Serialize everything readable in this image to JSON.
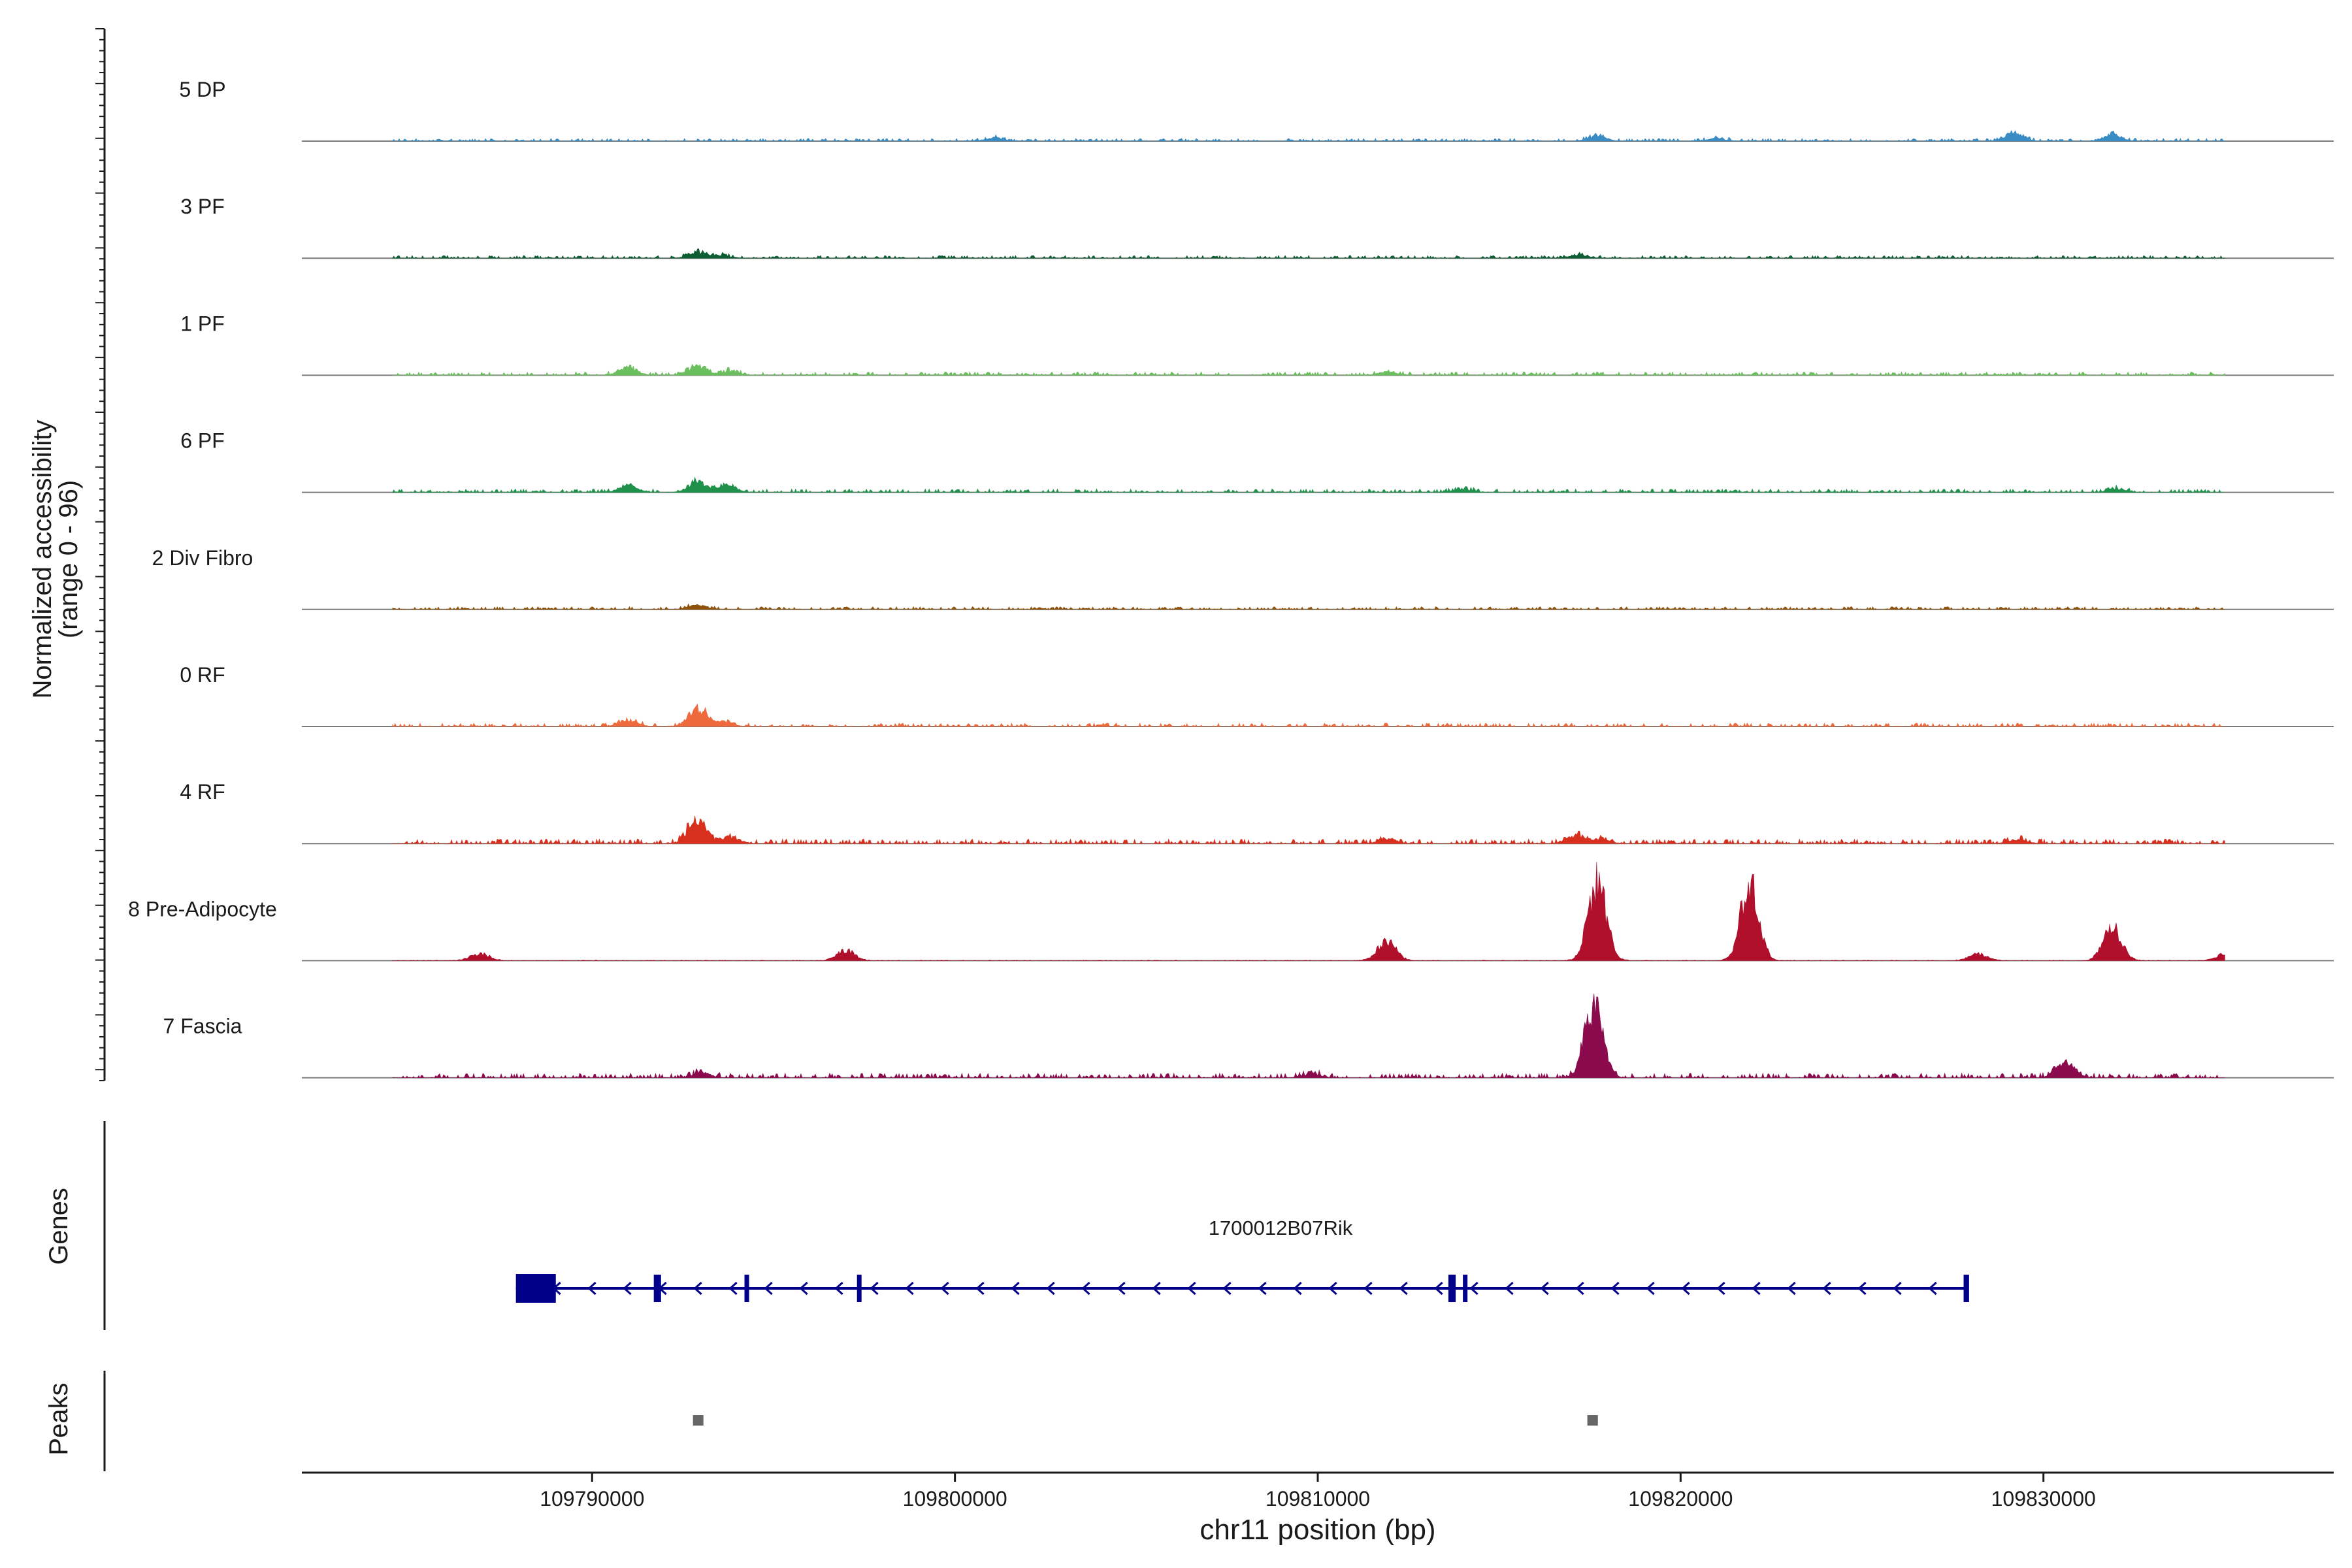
{
  "chart_data": {
    "type": "area",
    "title": "",
    "ylabel_line1": "Normalized accessibility",
    "ylabel_line2": "(range 0 - 96)",
    "xlabel": "chr11 position (bp)",
    "xlim": [
      109782000,
      109838000
    ],
    "xticks": [
      109790000,
      109800000,
      109810000,
      109820000,
      109830000
    ],
    "xtick_labels": [
      "109790000",
      "109800000",
      "109810000",
      "109820000",
      "109830000"
    ],
    "track_xlim": [
      109784500,
      109835000
    ],
    "ylim": [
      0,
      96
    ],
    "series": [
      {
        "name": "5 DP",
        "color": "#3a8dc4",
        "baseline": 1.2,
        "peaks": [
          [
            109801100,
            4
          ],
          [
            109817700,
            6
          ],
          [
            109821000,
            3
          ],
          [
            109829200,
            11
          ],
          [
            109831900,
            8
          ]
        ]
      },
      {
        "name": "3 PF",
        "color": "#0e5e34",
        "baseline": 1.2,
        "peaks": [
          [
            109792900,
            7
          ],
          [
            109793600,
            3
          ],
          [
            109817200,
            4
          ]
        ]
      },
      {
        "name": "1 PF",
        "color": "#6cbf5e",
        "baseline": 1.5,
        "peaks": [
          [
            109791000,
            9
          ],
          [
            109792900,
            11
          ],
          [
            109793800,
            5
          ],
          [
            109811900,
            4
          ]
        ]
      },
      {
        "name": "6 PF",
        "color": "#1f914b",
        "baseline": 1.5,
        "peaks": [
          [
            109791000,
            9
          ],
          [
            109792900,
            12
          ],
          [
            109793700,
            8
          ],
          [
            109814000,
            4
          ],
          [
            109832000,
            4
          ]
        ]
      },
      {
        "name": "2 Div Fibro",
        "color": "#8c510a",
        "baseline": 1.2,
        "peaks": [
          [
            109792900,
            5
          ]
        ]
      },
      {
        "name": "0 RF",
        "color": "#ee6a3c",
        "baseline": 1.5,
        "peaks": [
          [
            109791000,
            8
          ],
          [
            109792900,
            22
          ],
          [
            109793600,
            6
          ]
        ]
      },
      {
        "name": "4 RF",
        "color": "#d7301f",
        "baseline": 2.0,
        "peaks": [
          [
            109792900,
            30
          ],
          [
            109793800,
            8
          ],
          [
            109811900,
            6
          ],
          [
            109817100,
            9
          ],
          [
            109817800,
            5
          ],
          [
            109829300,
            5
          ]
        ]
      },
      {
        "name": "8 Pre-Adipocyte",
        "color": "#b0102c",
        "baseline": 0.3,
        "peaks": [
          [
            109797000,
            12
          ],
          [
            109811900,
            25
          ],
          [
            109817700,
            96
          ],
          [
            109821900,
            94
          ],
          [
            109831900,
            40
          ],
          [
            109828200,
            8
          ],
          [
            109835000,
            8
          ],
          [
            109786900,
            9
          ]
        ]
      },
      {
        "name": "7 Fascia",
        "color": "#8b0a4e",
        "baseline": 2.0,
        "peaks": [
          [
            109817600,
            88
          ],
          [
            109830600,
            18
          ],
          [
            109793000,
            6
          ],
          [
            109809800,
            5
          ]
        ]
      }
    ],
    "genes_label": "Genes",
    "gene": {
      "name": "1700012B07Rik",
      "start": 109787900,
      "end": 109827900,
      "strand": "-",
      "exons": [
        [
          109787900,
          109789000
        ],
        [
          109791700,
          109791900
        ],
        [
          109794200,
          109794300
        ],
        [
          109797300,
          109797420
        ],
        [
          109813600,
          109813800
        ],
        [
          109814000,
          109814080
        ],
        [
          109827800,
          109827950
        ]
      ]
    },
    "peaks_label": "Peaks",
    "peak_regions": [
      [
        109792780,
        109793060
      ],
      [
        109817430,
        109817720
      ]
    ],
    "colors": {
      "gene": "#00008b",
      "peak": "#666666",
      "axis": "#1a1a1a",
      "baseline": "#7a7a7a"
    }
  }
}
